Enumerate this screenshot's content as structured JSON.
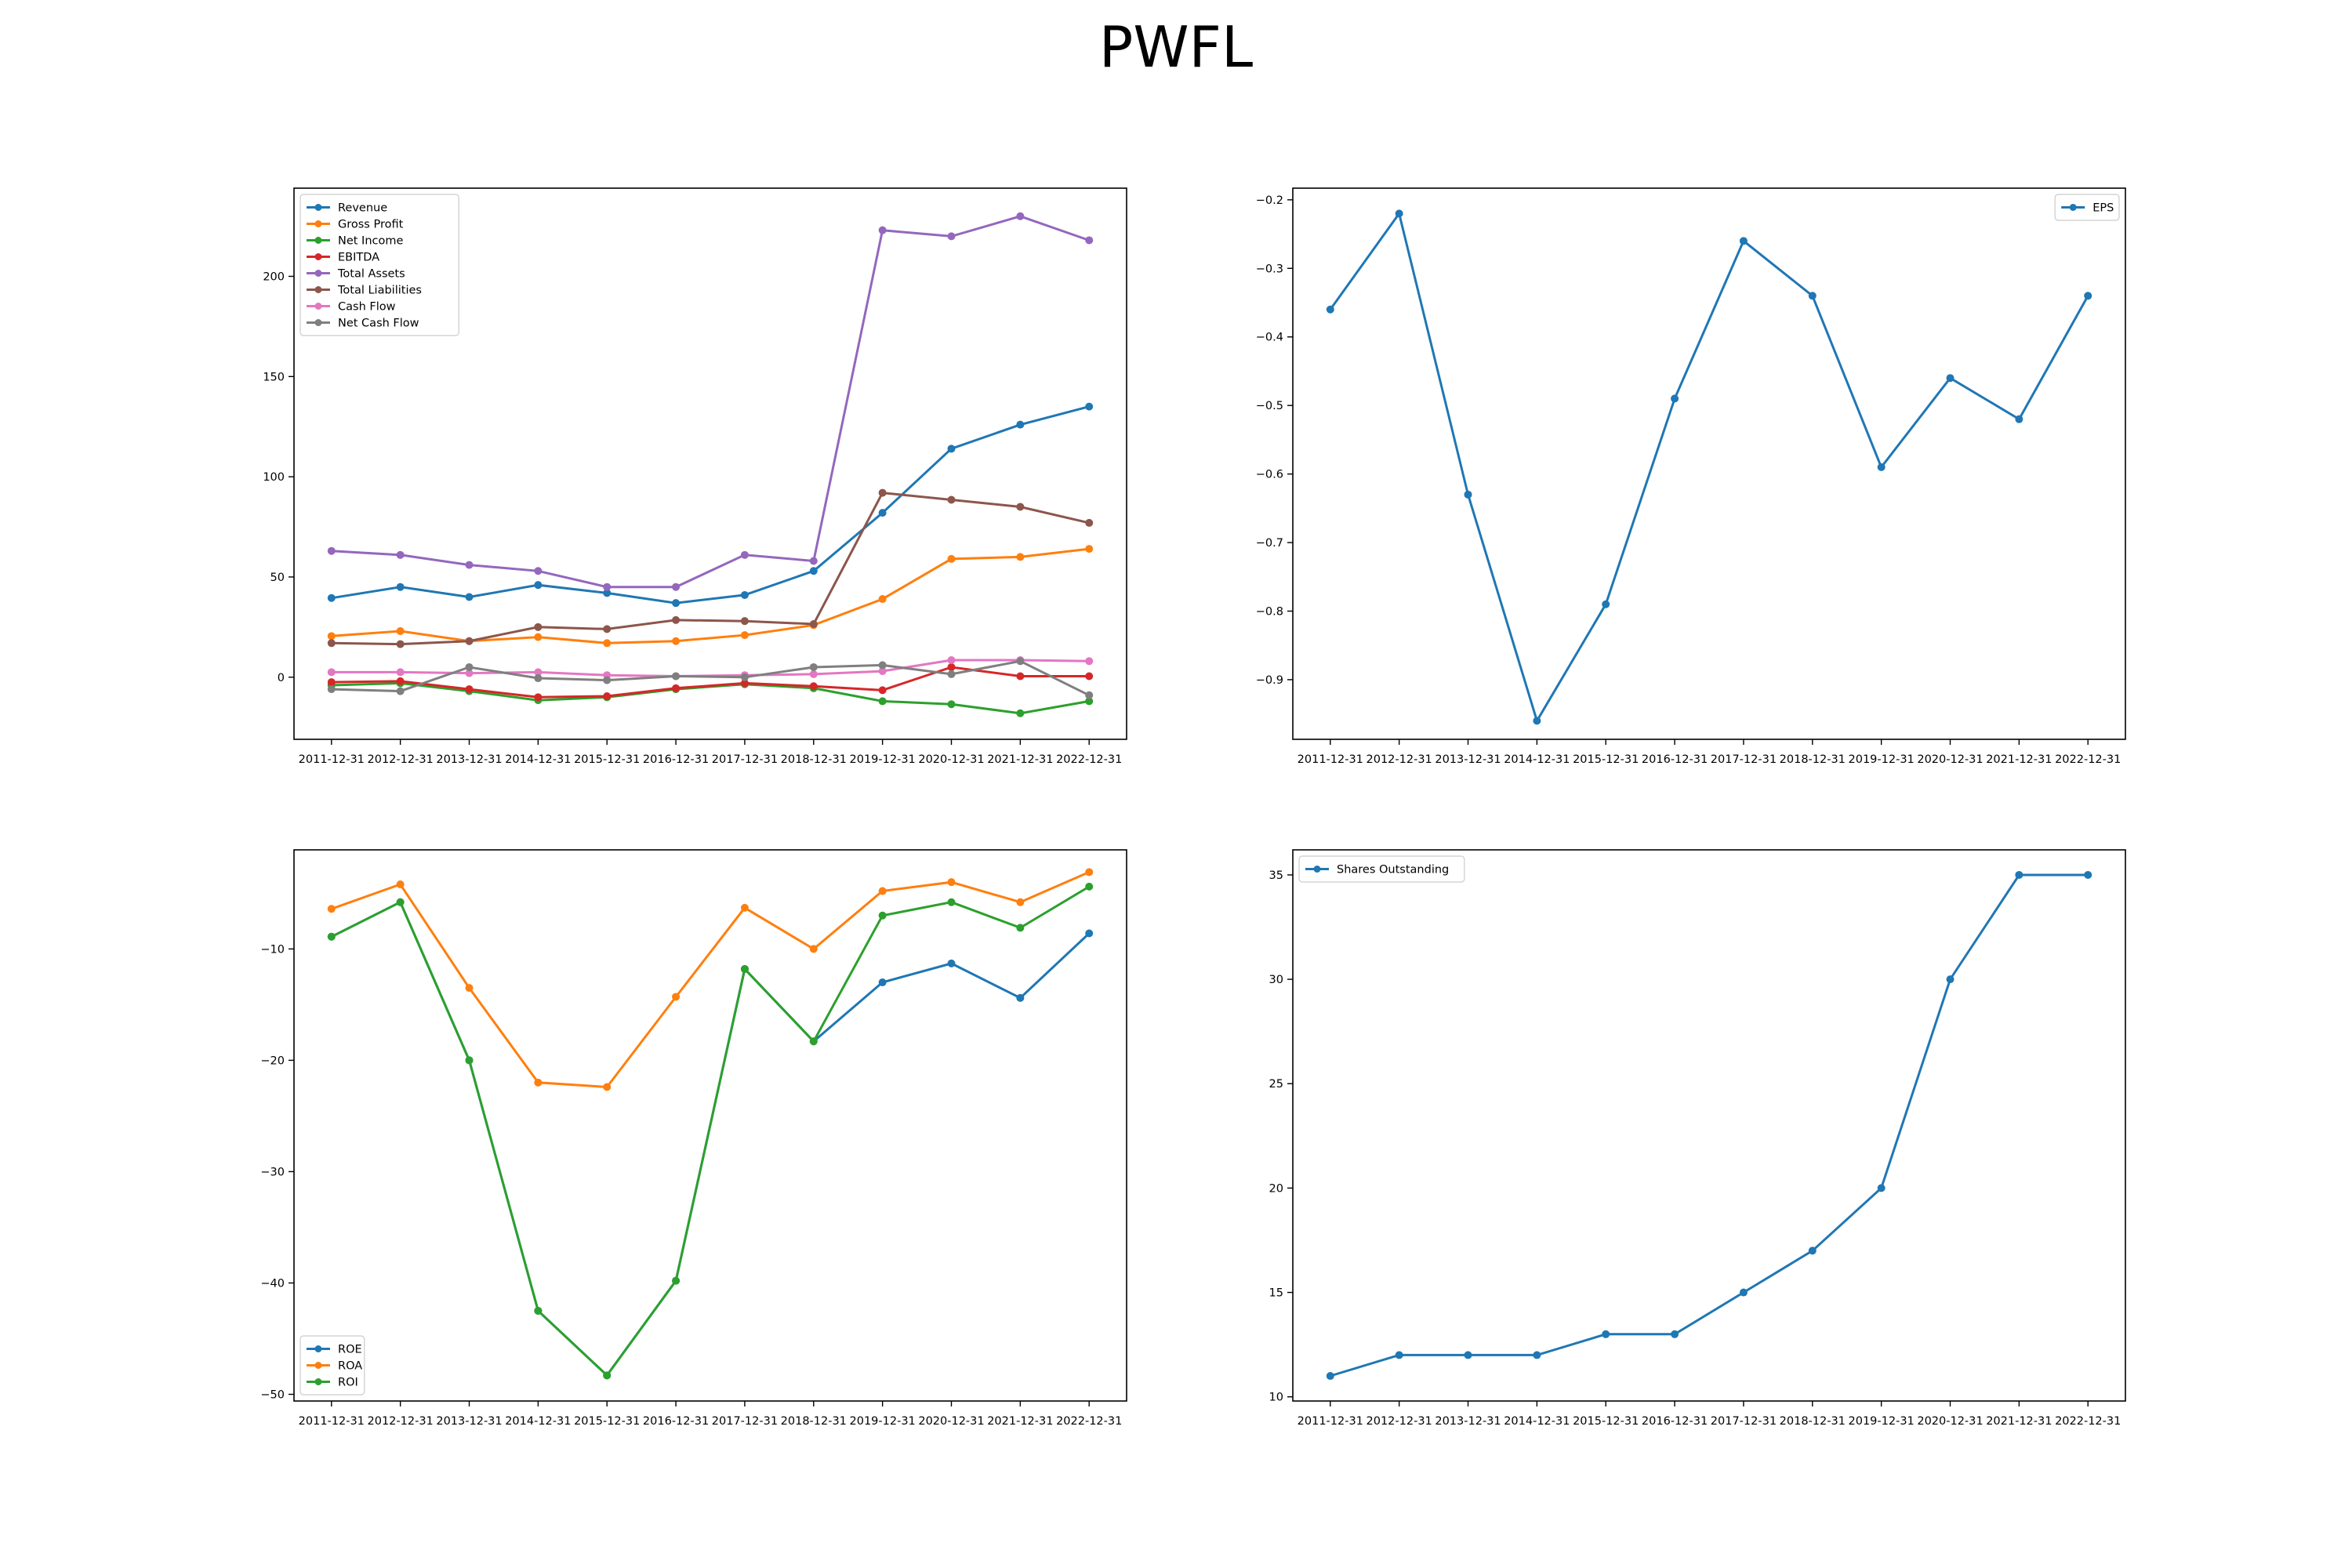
{
  "figure": {
    "title": "PWFL"
  },
  "chart_data": [
    {
      "id": "financials",
      "type": "line",
      "categories": [
        "2011-12-31",
        "2012-12-31",
        "2013-12-31",
        "2014-12-31",
        "2015-12-31",
        "2016-12-31",
        "2017-12-31",
        "2018-12-31",
        "2019-12-31",
        "2020-12-31",
        "2021-12-31",
        "2022-12-31"
      ],
      "ylim": [
        -31,
        244
      ],
      "yticks": [
        0,
        50,
        100,
        150,
        200
      ],
      "legend": "top-left",
      "series": [
        {
          "name": "Revenue",
          "color": "#1f77b4",
          "values": [
            39.5,
            45,
            40,
            46,
            42,
            37,
            41,
            53,
            82,
            114,
            126,
            135
          ]
        },
        {
          "name": "Gross Profit",
          "color": "#ff7f0e",
          "values": [
            20.5,
            23,
            18,
            20,
            17,
            18,
            21,
            26,
            39,
            59,
            60,
            64
          ]
        },
        {
          "name": "Net Income",
          "color": "#2ca02c",
          "values": [
            -4,
            -3,
            -7,
            -11.5,
            -10,
            -6,
            -3.5,
            -5.5,
            -12,
            -13.5,
            -18,
            -12
          ]
        },
        {
          "name": "EBITDA",
          "color": "#d62728",
          "values": [
            -2.5,
            -2,
            -6,
            -10,
            -9.5,
            -5.5,
            -3,
            -4.5,
            -6.5,
            5,
            0.5,
            0.5
          ]
        },
        {
          "name": "Total Assets",
          "color": "#9467bd",
          "values": [
            63,
            61,
            56,
            53,
            45,
            45,
            61,
            58,
            223,
            220,
            230,
            218
          ]
        },
        {
          "name": "Total Liabilities",
          "color": "#8c564b",
          "values": [
            17,
            16.5,
            18,
            25,
            24,
            28.5,
            28,
            26.5,
            92,
            88.5,
            85,
            77
          ]
        },
        {
          "name": "Cash Flow",
          "color": "#e377c2",
          "values": [
            2.5,
            2.5,
            2,
            2.5,
            1,
            0.5,
            1,
            1.5,
            3,
            8.5,
            8.5,
            8
          ]
        },
        {
          "name": "Net Cash Flow",
          "color": "#7f7f7f",
          "values": [
            -6,
            -7,
            5,
            -0.5,
            -1.5,
            0.5,
            0,
            5,
            6,
            1.5,
            8,
            -9
          ]
        }
      ]
    },
    {
      "id": "eps",
      "type": "line",
      "categories": [
        "2011-12-31",
        "2012-12-31",
        "2013-12-31",
        "2014-12-31",
        "2015-12-31",
        "2016-12-31",
        "2017-12-31",
        "2018-12-31",
        "2019-12-31",
        "2020-12-31",
        "2021-12-31",
        "2022-12-31"
      ],
      "ylim": [
        -0.987,
        -0.183
      ],
      "yticks": [
        -0.9,
        -0.8,
        -0.7,
        -0.6,
        -0.5,
        -0.4,
        -0.3,
        -0.2
      ],
      "legend": "top-right",
      "series": [
        {
          "name": "EPS",
          "color": "#1f77b4",
          "values": [
            -0.36,
            -0.22,
            -0.63,
            -0.96,
            -0.79,
            -0.49,
            -0.26,
            -0.34,
            -0.59,
            -0.46,
            -0.52,
            -0.34
          ]
        }
      ]
    },
    {
      "id": "ratios",
      "type": "line",
      "categories": [
        "2011-12-31",
        "2012-12-31",
        "2013-12-31",
        "2014-12-31",
        "2015-12-31",
        "2016-12-31",
        "2017-12-31",
        "2018-12-31",
        "2019-12-31",
        "2020-12-31",
        "2021-12-31",
        "2022-12-31"
      ],
      "ylim": [
        -50.6,
        -1.1
      ],
      "yticks": [
        -50,
        -40,
        -30,
        -20,
        -10
      ],
      "legend": "bottom-left",
      "series": [
        {
          "name": "ROE",
          "color": "#1f77b4",
          "values": [
            -8.9,
            -5.8,
            -20,
            -42.5,
            -48.3,
            -39.8,
            -11.8,
            -18.3,
            -13,
            -11.3,
            -14.4,
            -8.6
          ]
        },
        {
          "name": "ROA",
          "color": "#ff7f0e",
          "values": [
            -6.4,
            -4.2,
            -13.5,
            -22,
            -22.4,
            -14.3,
            -6.3,
            -10,
            -4.8,
            -4,
            -5.8,
            -3.1
          ]
        },
        {
          "name": "ROI",
          "color": "#2ca02c",
          "values": [
            -8.9,
            -5.8,
            -20,
            -42.5,
            -48.3,
            -39.8,
            -11.8,
            -18.3,
            -7,
            -5.8,
            -8.1,
            -4.4
          ]
        }
      ]
    },
    {
      "id": "shares",
      "type": "line",
      "categories": [
        "2011-12-31",
        "2012-12-31",
        "2013-12-31",
        "2014-12-31",
        "2015-12-31",
        "2016-12-31",
        "2017-12-31",
        "2018-12-31",
        "2019-12-31",
        "2020-12-31",
        "2021-12-31",
        "2022-12-31"
      ],
      "ylim": [
        9.8,
        36.2
      ],
      "yticks": [
        10,
        15,
        20,
        25,
        30,
        35
      ],
      "legend": "top-left",
      "series": [
        {
          "name": "Shares Outstanding",
          "color": "#1f77b4",
          "values": [
            11,
            12,
            12,
            12,
            13,
            13,
            15,
            17,
            20,
            30,
            35,
            35
          ]
        }
      ]
    }
  ]
}
